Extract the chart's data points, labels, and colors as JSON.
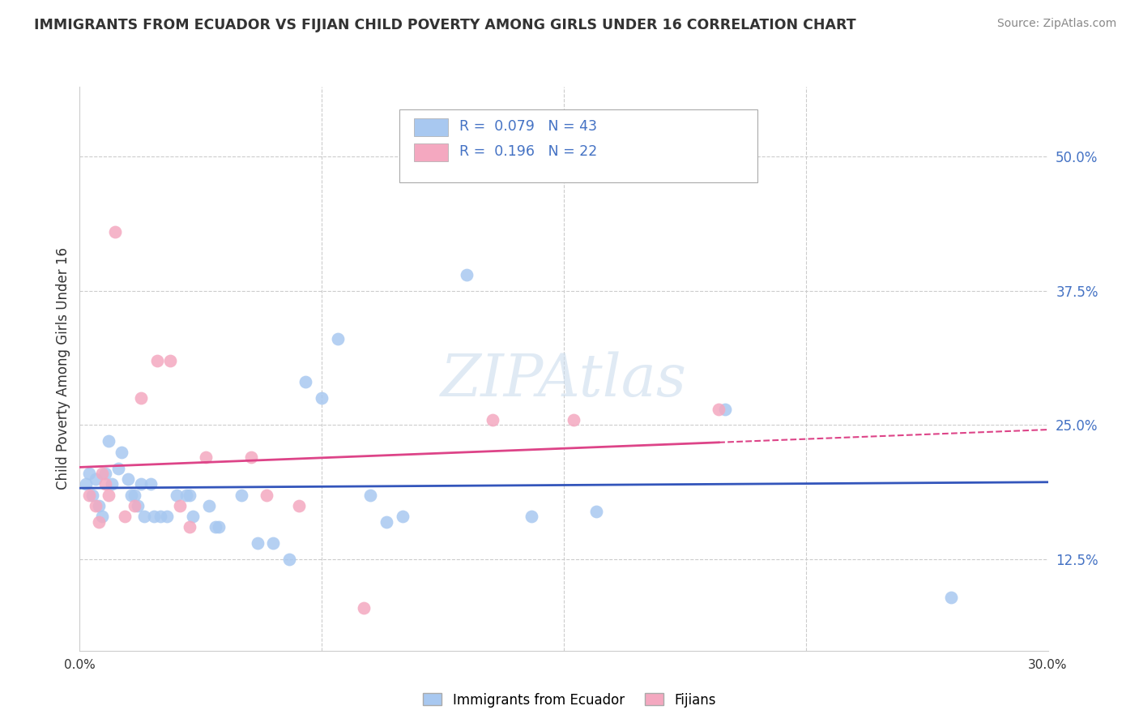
{
  "title": "IMMIGRANTS FROM ECUADOR VS FIJIAN CHILD POVERTY AMONG GIRLS UNDER 16 CORRELATION CHART",
  "source": "Source: ZipAtlas.com",
  "ylabel": "Child Poverty Among Girls Under 16",
  "legend_label1": "Immigrants from Ecuador",
  "legend_label2": "Fijians",
  "blue_color": "#A8C8F0",
  "pink_color": "#F4A8C0",
  "blue_line_color": "#3355BB",
  "pink_line_color": "#DD4488",
  "text_blue": "#4472c4",
  "text_dark": "#333333",
  "text_gray": "#888888",
  "grid_color": "#cccccc",
  "watermark_color": "#ccddee",
  "xlim": [
    0.0,
    0.3
  ],
  "ylim": [
    0.04,
    0.565
  ],
  "yticks": [
    0.125,
    0.25,
    0.375,
    0.5
  ],
  "ytick_labels": [
    "12.5%",
    "25.0%",
    "37.5%",
    "50.0%"
  ],
  "xticks": [
    0.0,
    0.3
  ],
  "xtick_labels": [
    "0.0%",
    "30.0%"
  ],
  "blue_x": [
    0.002,
    0.003,
    0.004,
    0.005,
    0.006,
    0.007,
    0.008,
    0.009,
    0.01,
    0.012,
    0.013,
    0.015,
    0.016,
    0.017,
    0.018,
    0.019,
    0.02,
    0.022,
    0.023,
    0.025,
    0.027,
    0.03,
    0.033,
    0.034,
    0.035,
    0.04,
    0.042,
    0.043,
    0.05,
    0.055,
    0.06,
    0.065,
    0.07,
    0.075,
    0.08,
    0.09,
    0.095,
    0.1,
    0.12,
    0.14,
    0.16,
    0.2,
    0.27
  ],
  "blue_y": [
    0.195,
    0.205,
    0.185,
    0.2,
    0.175,
    0.165,
    0.205,
    0.235,
    0.195,
    0.21,
    0.225,
    0.2,
    0.185,
    0.185,
    0.175,
    0.195,
    0.165,
    0.195,
    0.165,
    0.165,
    0.165,
    0.185,
    0.185,
    0.185,
    0.165,
    0.175,
    0.155,
    0.155,
    0.185,
    0.14,
    0.14,
    0.125,
    0.29,
    0.275,
    0.33,
    0.185,
    0.16,
    0.165,
    0.39,
    0.165,
    0.17,
    0.265,
    0.09
  ],
  "pink_x": [
    0.003,
    0.005,
    0.006,
    0.007,
    0.008,
    0.009,
    0.011,
    0.014,
    0.017,
    0.019,
    0.024,
    0.028,
    0.031,
    0.034,
    0.039,
    0.053,
    0.058,
    0.068,
    0.088,
    0.128,
    0.153,
    0.198
  ],
  "pink_y": [
    0.185,
    0.175,
    0.16,
    0.205,
    0.195,
    0.185,
    0.43,
    0.165,
    0.175,
    0.275,
    0.31,
    0.31,
    0.175,
    0.155,
    0.22,
    0.22,
    0.185,
    0.175,
    0.08,
    0.255,
    0.255,
    0.265
  ]
}
